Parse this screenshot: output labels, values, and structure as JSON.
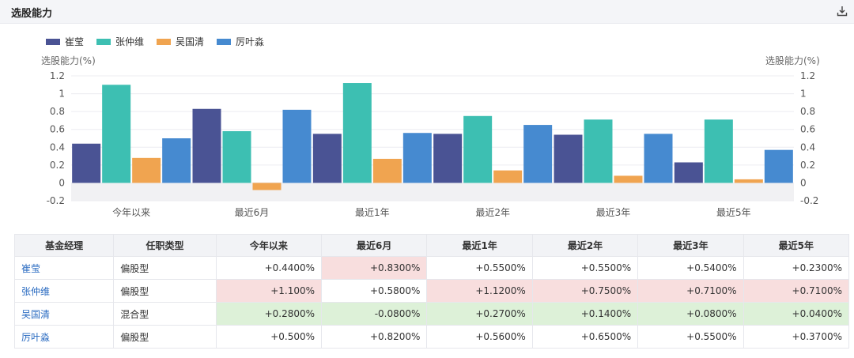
{
  "header": {
    "title": "选股能力"
  },
  "legend": [
    {
      "name": "崔莹",
      "color": "#4a5394"
    },
    {
      "name": "张仲维",
      "color": "#3dbfb2"
    },
    {
      "name": "吴国清",
      "color": "#f0a450"
    },
    {
      "name": "厉叶淼",
      "color": "#468ad0"
    }
  ],
  "chart_data": {
    "type": "bar",
    "categories": [
      "今年以来",
      "最近6月",
      "最近1年",
      "最近2年",
      "最近3年",
      "最近5年"
    ],
    "series": [
      {
        "name": "崔莹",
        "color": "#4a5394",
        "values": [
          0.44,
          0.83,
          0.55,
          0.55,
          0.54,
          0.23
        ]
      },
      {
        "name": "张仲维",
        "color": "#3dbfb2",
        "values": [
          1.1,
          0.58,
          1.12,
          0.75,
          0.71,
          0.71
        ]
      },
      {
        "name": "吴国清",
        "color": "#f0a450",
        "values": [
          0.28,
          -0.08,
          0.27,
          0.14,
          0.08,
          0.04
        ]
      },
      {
        "name": "厉叶淼",
        "color": "#468ad0",
        "values": [
          0.5,
          0.82,
          0.56,
          0.65,
          0.55,
          0.37
        ]
      }
    ],
    "ylabel_left": "选股能力(%)",
    "ylabel_right": "选股能力(%)",
    "yticks": [
      "1.2",
      "1",
      "0.8",
      "0.6",
      "0.4",
      "0.2",
      "0",
      "-0.2"
    ],
    "ylim": [
      -0.2,
      1.2
    ],
    "grid": true
  },
  "table": {
    "headers": [
      "基金经理",
      "任职类型",
      "今年以来",
      "最近6月",
      "最近1年",
      "最近2年",
      "最近3年",
      "最近5年"
    ],
    "rows": [
      {
        "name": "崔莹",
        "type": "偏股型",
        "values": [
          "+0.4400%",
          "+0.8300%",
          "+0.5500%",
          "+0.5500%",
          "+0.5400%",
          "+0.2300%"
        ],
        "highlight": [
          null,
          "red",
          null,
          null,
          null,
          null
        ]
      },
      {
        "name": "张仲维",
        "type": "偏股型",
        "values": [
          "+1.100%",
          "+0.5800%",
          "+1.1200%",
          "+0.7500%",
          "+0.7100%",
          "+0.7100%"
        ],
        "highlight": [
          "red",
          null,
          "red",
          "red",
          "red",
          "red"
        ]
      },
      {
        "name": "吴国清",
        "type": "混合型",
        "values": [
          "+0.2800%",
          "-0.0800%",
          "+0.2700%",
          "+0.1400%",
          "+0.0800%",
          "+0.0400%"
        ],
        "highlight": [
          "green",
          "green",
          "green",
          "green",
          "green",
          "green"
        ]
      },
      {
        "name": "厉叶淼",
        "type": "偏股型",
        "values": [
          "+0.500%",
          "+0.8200%",
          "+0.5600%",
          "+0.6500%",
          "+0.5500%",
          "+0.3700%"
        ],
        "highlight": [
          null,
          null,
          null,
          null,
          null,
          null
        ]
      }
    ]
  }
}
